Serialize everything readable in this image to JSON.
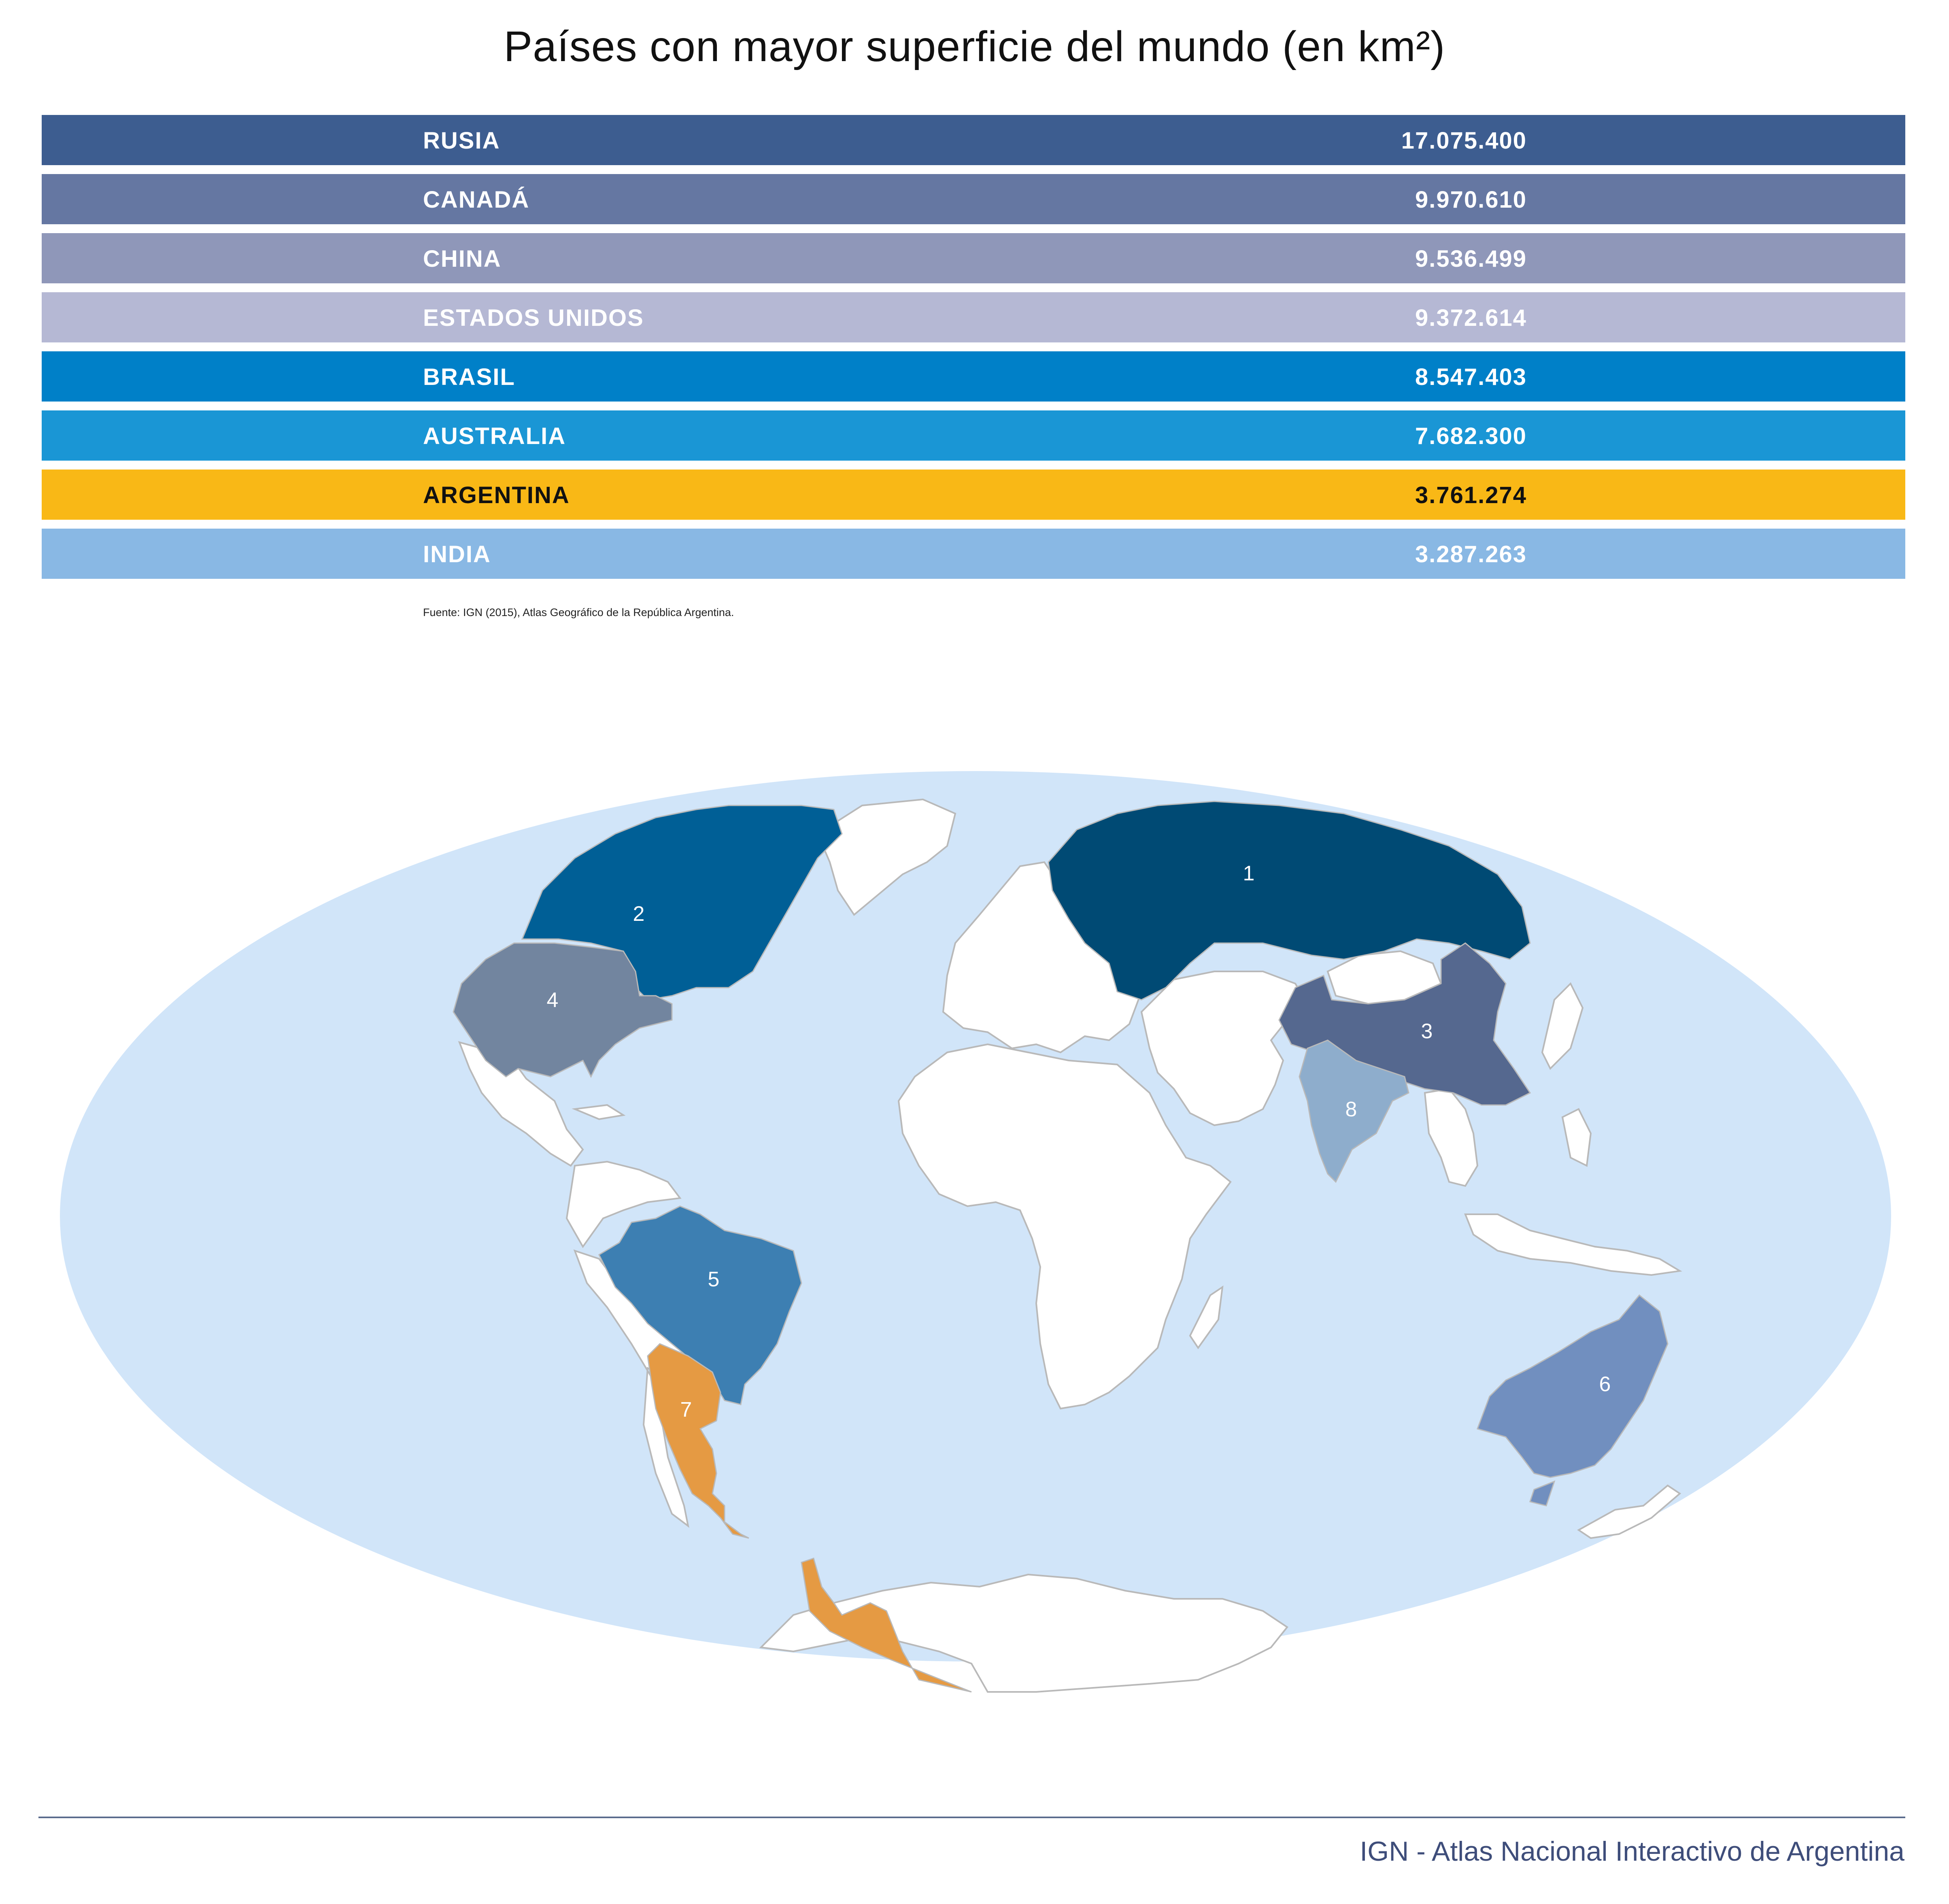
{
  "title": "Países con mayor superficie del mundo (en km²)",
  "rows": [
    {
      "rank": "1",
      "name": "RUSIA",
      "value": "17.075.400",
      "bg": "#3d5d90",
      "fg": "#ffffff",
      "map_color": "#004a74"
    },
    {
      "rank": "2",
      "name": "CANADÁ",
      "value": "9.970.610",
      "bg": "#6577a2",
      "fg": "#ffffff",
      "map_color": "#005f96"
    },
    {
      "rank": "3",
      "name": "CHINA",
      "value": "9.536.499",
      "bg": "#8f97b9",
      "fg": "#ffffff",
      "map_color": "#55688f"
    },
    {
      "rank": "4",
      "name": "ESTADOS UNIDOS",
      "value": "9.372.614",
      "bg": "#b5b8d4",
      "fg": "#ffffff",
      "map_color": "#72859f"
    },
    {
      "rank": "5",
      "name": "BRASIL",
      "value": "8.547.403",
      "bg": "#0080c8",
      "fg": "#ffffff",
      "map_color": "#3d7fb2"
    },
    {
      "rank": "6",
      "name": "AUSTRALIA",
      "value": "7.682.300",
      "bg": "#1a96d5",
      "fg": "#ffffff",
      "map_color": "#718fbf"
    },
    {
      "rank": "7",
      "name": "ARGENTINA",
      "value": "3.761.274",
      "bg": "#f9b816",
      "fg": "#111111",
      "map_color": "#e59a43"
    },
    {
      "rank": "8",
      "name": "INDIA",
      "value": "3.287.263",
      "bg": "#89b8e4",
      "fg": "#ffffff",
      "map_color": "#8eadcc"
    }
  ],
  "source": "Fuente: IGN (2015), Atlas Geográfico de la República Argentina.",
  "map": {
    "ocean_color": "#d1e5f9",
    "land_color": "#ffffff",
    "border_color": "#b9b9b9"
  },
  "footer": "IGN - Atlas Nacional Interactivo de Argentina"
}
